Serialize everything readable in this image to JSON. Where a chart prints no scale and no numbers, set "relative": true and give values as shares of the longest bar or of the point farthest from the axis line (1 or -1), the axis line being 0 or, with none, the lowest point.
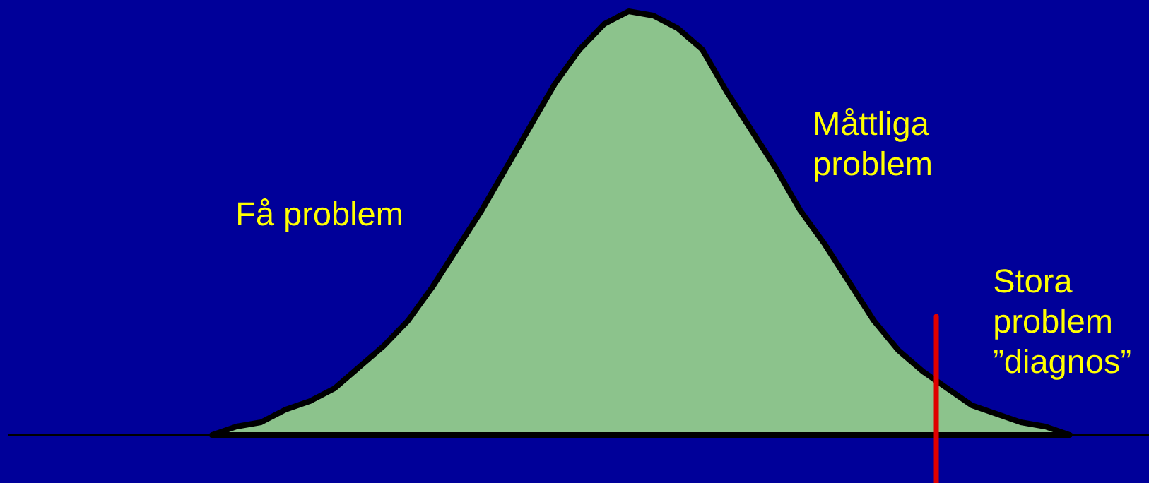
{
  "chart_data": {
    "type": "area",
    "relative": true,
    "categories": [
      null,
      null,
      null,
      null,
      null,
      null,
      null,
      null,
      null,
      null,
      null,
      null,
      null,
      null,
      null,
      null,
      null,
      null,
      null,
      null,
      null,
      null,
      null,
      null,
      null,
      null,
      null,
      null,
      null,
      null,
      null,
      null,
      null,
      null,
      null,
      null
    ],
    "values": [
      0,
      0.02,
      0.03,
      0.06,
      0.08,
      0.11,
      0.16,
      0.21,
      0.27,
      0.35,
      0.44,
      0.53,
      0.63,
      0.73,
      0.83,
      0.91,
      0.97,
      1,
      0.99,
      0.96,
      0.91,
      0.81,
      0.72,
      0.63,
      0.53,
      0.45,
      0.36,
      0.27,
      0.2,
      0.15,
      0.11,
      0.07,
      0.05,
      0.03,
      0.02,
      0
    ],
    "color": "#8cc38c",
    "annotations": [
      "Få problem",
      "Måttliga problem",
      "Stora problem ”diagnos”"
    ]
  }
}
